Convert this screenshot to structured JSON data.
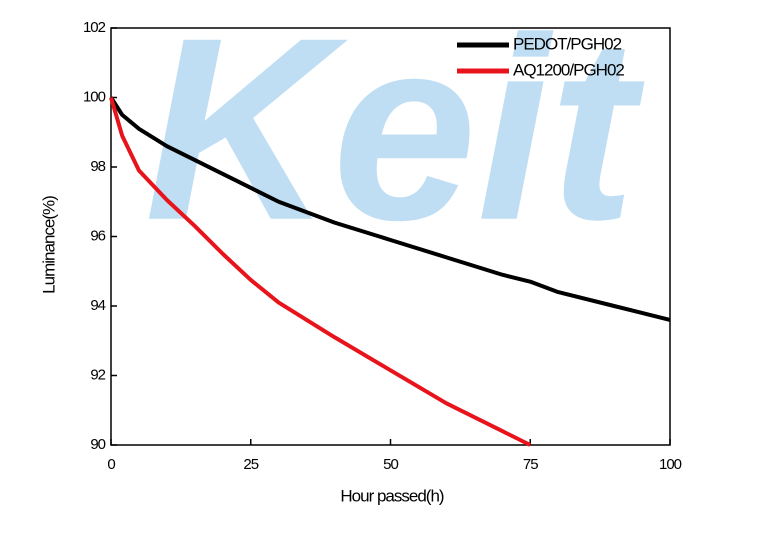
{
  "chart_data": {
    "type": "line",
    "watermark": "Keit",
    "x_label": "Hour passed(h)",
    "y_label": "Luminance(%)",
    "x": [
      0,
      2,
      5,
      10,
      15,
      20,
      25,
      30,
      40,
      50,
      60,
      70,
      75,
      80,
      90,
      100
    ],
    "series": [
      {
        "name": "PEDOT/PGH02",
        "color": "#000000",
        "values": [
          100,
          99.5,
          99.1,
          98.6,
          98.2,
          97.8,
          97.4,
          97.0,
          96.4,
          95.9,
          95.4,
          94.9,
          94.7,
          94.4,
          94.0,
          93.6
        ]
      },
      {
        "name": "AQ1200/PGH02",
        "color": "#e8141c",
        "values": [
          100,
          98.9,
          97.9,
          97.05,
          96.3,
          95.5,
          94.75,
          94.1,
          93.1,
          92.15,
          91.2,
          90.4,
          90.0,
          null,
          null,
          null
        ]
      }
    ],
    "xlim": [
      0,
      100
    ],
    "xticks": [
      0,
      25,
      50,
      75,
      100
    ],
    "ylim": [
      90,
      102
    ],
    "yticks": [
      90,
      92,
      94,
      96,
      98,
      100,
      102
    ],
    "legend": "upper-right"
  }
}
